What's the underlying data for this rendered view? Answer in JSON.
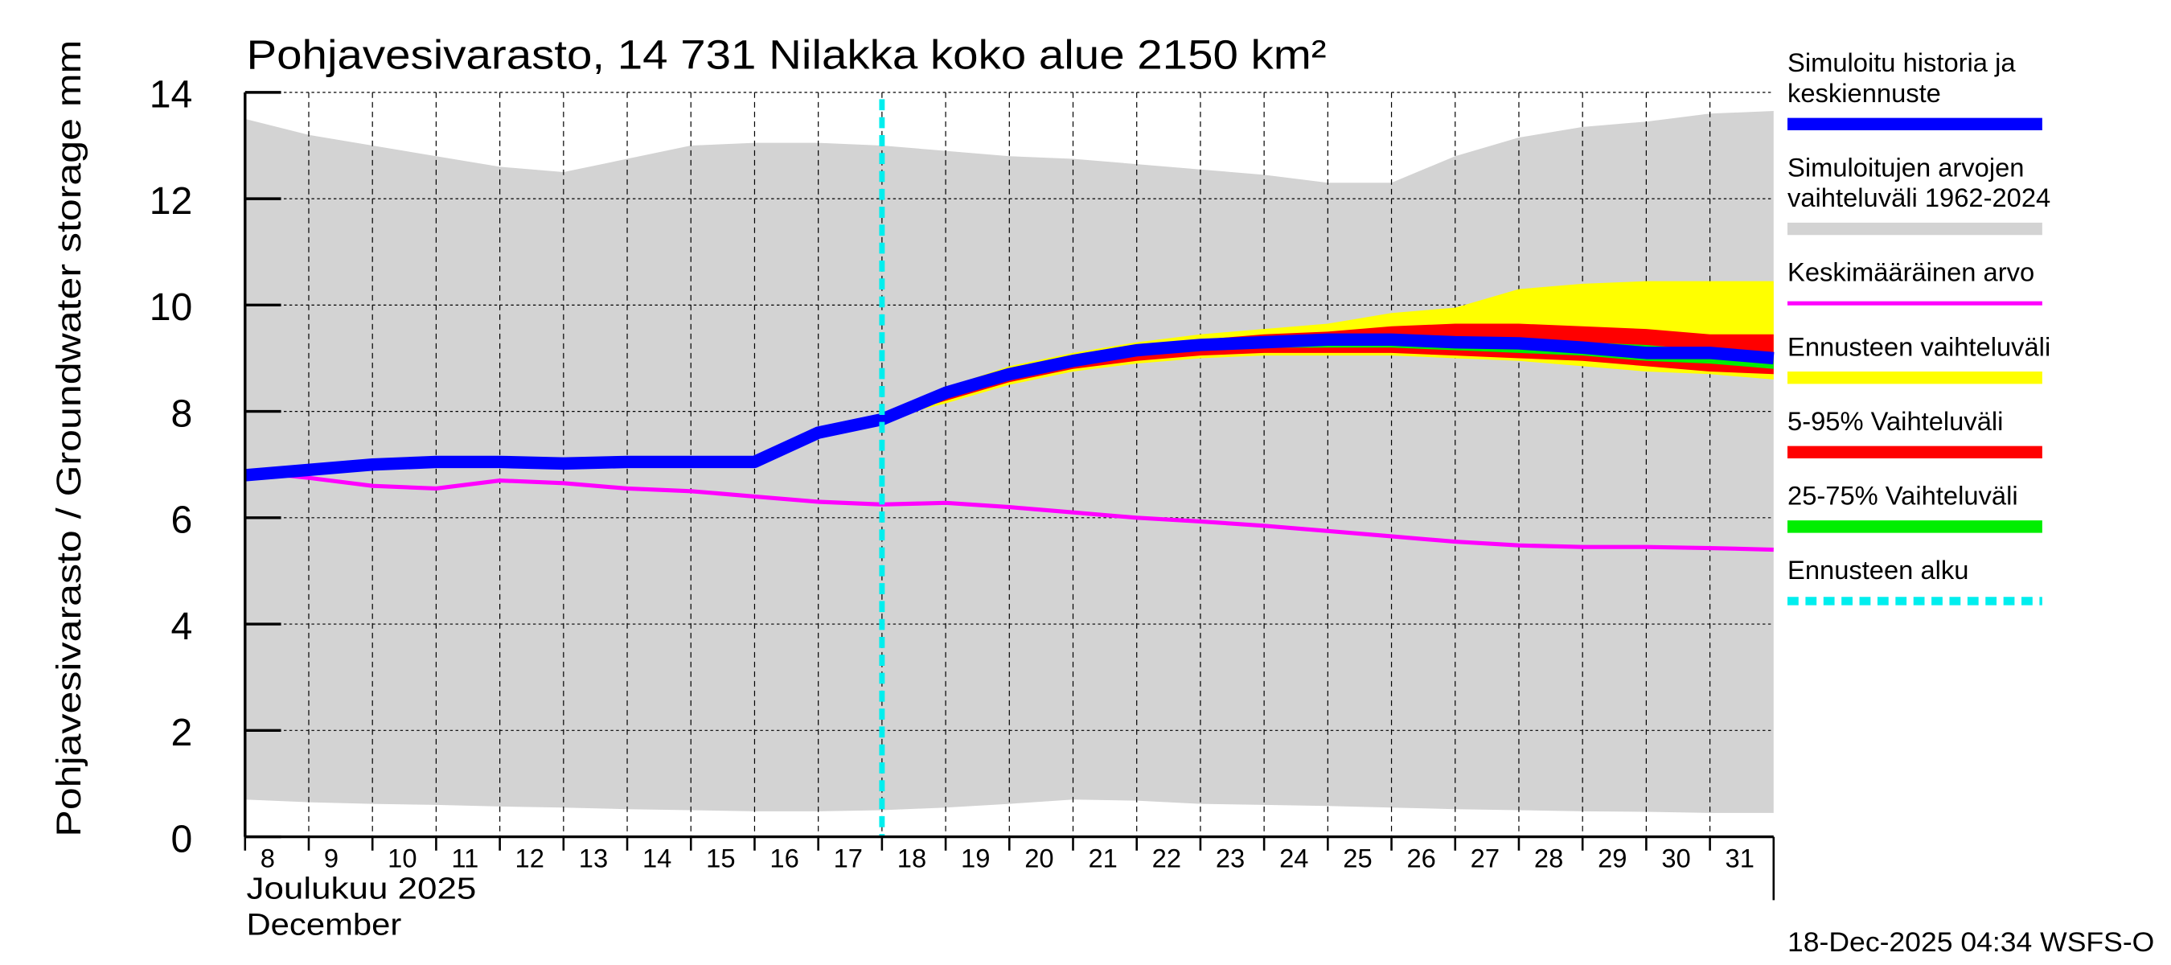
{
  "chart_data": {
    "type": "area",
    "title": "Pohjavesivarasto, 14 731 Nilakka koko alue 2150 km²",
    "ylabel": "Pohjavesivarasto / Groundwater storage   mm",
    "xlabel_line1": "Joulukuu  2025",
    "xlabel_line2": "December",
    "footer": "18-Dec-2025 04:34 WSFS-O",
    "ylim": [
      0,
      14
    ],
    "yticks": [
      0,
      2,
      4,
      6,
      8,
      10,
      12,
      14
    ],
    "xlim_days": [
      0,
      24
    ],
    "day_labels": [
      "8",
      "9",
      "10",
      "11",
      "12",
      "13",
      "14",
      "15",
      "16",
      "17",
      "18",
      "19",
      "20",
      "21",
      "22",
      "23",
      "24",
      "25",
      "26",
      "27",
      "28",
      "29",
      "30",
      "31"
    ],
    "forecast_start_day_index": 10,
    "grid": true,
    "legend_placement": "right",
    "legend": [
      {
        "label_lines": [
          "Simuloitu historia ja",
          "keskiennuste"
        ],
        "color": "#0000ff",
        "style": "thick"
      },
      {
        "label_lines": [
          "Simuloitujen arvojen",
          "vaihteluväli 1962-2024"
        ],
        "color": "#d3d3d3",
        "style": "thick"
      },
      {
        "label_lines": [
          "Keskimääräinen arvo"
        ],
        "color": "#ff00ff",
        "style": "thin"
      },
      {
        "label_lines": [
          "Ennusteen vaihteluväli"
        ],
        "color": "#ffff00",
        "style": "thick"
      },
      {
        "label_lines": [
          "5-95% Vaihteluväli"
        ],
        "color": "#ff0000",
        "style": "thick"
      },
      {
        "label_lines": [
          "25-75% Vaihteluväli"
        ],
        "color": "#00ee00",
        "style": "thick"
      },
      {
        "label_lines": [
          "Ennusteen alku"
        ],
        "color": "#00eeee",
        "style": "dashed"
      }
    ],
    "series": {
      "range_upper": [
        13.5,
        13.2,
        13.0,
        12.8,
        12.6,
        12.5,
        12.75,
        13.0,
        13.05,
        13.05,
        13.0,
        12.9,
        12.8,
        12.75,
        12.65,
        12.55,
        12.45,
        12.3,
        12.3,
        12.8,
        13.15,
        13.35,
        13.45,
        13.6,
        13.65
      ],
      "range_lower": [
        0.7,
        0.65,
        0.62,
        0.6,
        0.57,
        0.55,
        0.52,
        0.5,
        0.48,
        0.48,
        0.5,
        0.55,
        0.62,
        0.7,
        0.68,
        0.62,
        0.6,
        0.58,
        0.55,
        0.52,
        0.5,
        0.48,
        0.47,
        0.45,
        0.45
      ],
      "mean": [
        6.88,
        6.75,
        6.6,
        6.55,
        6.7,
        6.65,
        6.55,
        6.5,
        6.4,
        6.3,
        6.25,
        6.28,
        6.2,
        6.1,
        6.0,
        5.93,
        5.85,
        5.75,
        5.65,
        5.55,
        5.48,
        5.45,
        5.45,
        5.43,
        5.4
      ],
      "simulated": [
        6.8,
        6.9,
        7.0,
        7.05,
        7.05,
        7.02,
        7.05,
        7.05,
        7.05,
        7.6,
        7.85,
        8.35,
        8.7,
        8.95,
        9.15,
        9.25,
        9.3,
        9.35,
        9.35,
        9.3,
        9.28,
        9.2,
        9.1,
        9.1,
        9.0
      ],
      "forecast_upper": [
        7.85,
        8.45,
        8.85,
        9.1,
        9.3,
        9.45,
        9.55,
        9.65,
        9.85,
        9.95,
        10.3,
        10.4,
        10.45,
        10.45,
        10.45
      ],
      "forecast_lower": [
        7.85,
        8.15,
        8.5,
        8.75,
        8.9,
        9.0,
        9.05,
        9.05,
        9.05,
        9.0,
        8.95,
        8.85,
        8.75,
        8.7,
        8.6
      ],
      "p95": [
        7.85,
        8.4,
        8.8,
        9.05,
        9.25,
        9.35,
        9.45,
        9.5,
        9.6,
        9.65,
        9.65,
        9.6,
        9.55,
        9.45,
        9.45
      ],
      "p05": [
        7.85,
        8.2,
        8.55,
        8.8,
        8.95,
        9.05,
        9.1,
        9.1,
        9.1,
        9.05,
        9.0,
        8.95,
        8.85,
        8.75,
        8.7
      ],
      "p75": [
        7.85,
        8.35,
        8.75,
        9.0,
        9.2,
        9.3,
        9.35,
        9.4,
        9.4,
        9.35,
        9.35,
        9.3,
        9.25,
        9.15,
        9.1
      ],
      "p25": [
        7.85,
        8.3,
        8.65,
        8.9,
        9.05,
        9.15,
        9.2,
        9.2,
        9.2,
        9.15,
        9.1,
        9.05,
        8.95,
        8.9,
        8.8
      ]
    }
  }
}
